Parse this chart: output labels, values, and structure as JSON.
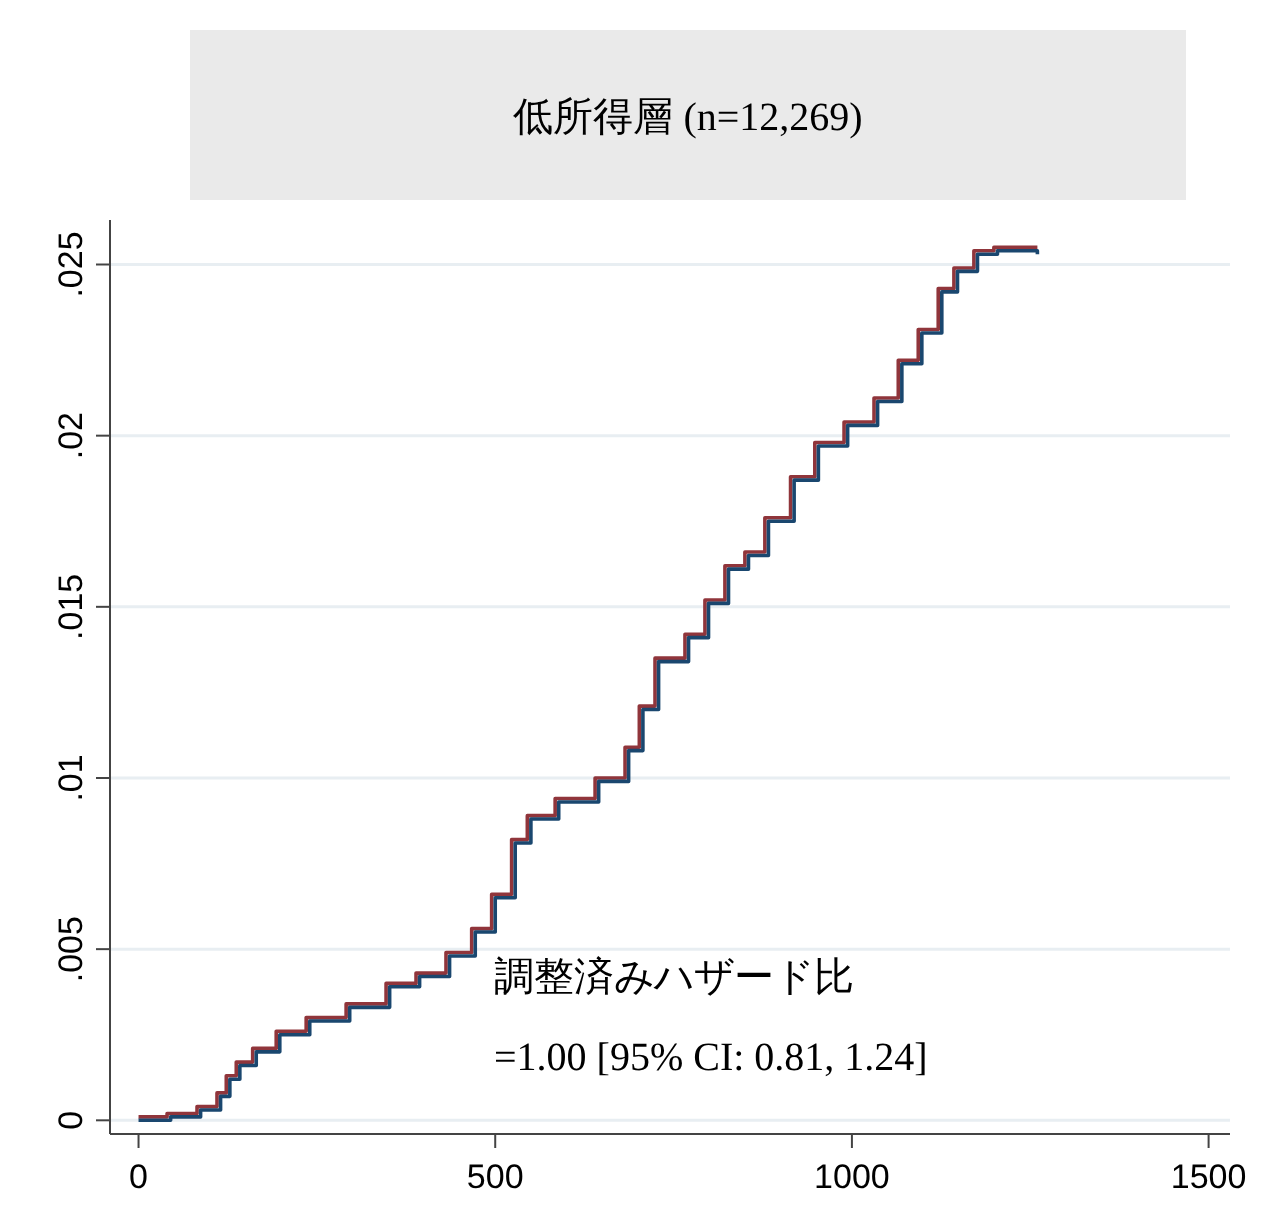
{
  "chart_data": {
    "type": "step",
    "title": "低所得層 (n=12,269)",
    "annotations": [
      "調整済みハザード比",
      "=1.00 [95% CI: 0.81, 1.24]"
    ],
    "xlim": [
      -40,
      1530
    ],
    "xticks": [
      0,
      500,
      1000,
      1500
    ],
    "ylim": [
      -0.0004,
      0.0263
    ],
    "yticks": [
      0,
      {
        "value": 0.005,
        "label": ".005"
      },
      {
        "value": 0.01,
        "label": ".01"
      },
      {
        "value": 0.015,
        "label": ".015"
      },
      {
        "value": 0.02,
        "label": ".02"
      },
      {
        "value": 0.025,
        "label": ".025"
      }
    ],
    "grid": "y",
    "series": [
      {
        "color": "#90353b",
        "x": [
          0,
          40,
          82,
          110,
          123,
          137,
          160,
          193,
          235,
          291,
          347,
          389,
          431,
          467,
          495,
          523,
          545,
          584,
          640,
          682,
          702,
          724,
          766,
          794,
          822,
          850,
          878,
          914,
          948,
          989,
          1031,
          1065,
          1093,
          1121,
          1143,
          1171,
          1199,
          1260
        ],
        "values": [
          0.0001,
          0.0002,
          0.0004,
          0.0008,
          0.0013,
          0.0017,
          0.0021,
          0.0026,
          0.003,
          0.0034,
          0.004,
          0.0043,
          0.0049,
          0.0056,
          0.0066,
          0.0082,
          0.0089,
          0.0094,
          0.01,
          0.0109,
          0.0121,
          0.0135,
          0.0142,
          0.0152,
          0.0162,
          0.0166,
          0.0176,
          0.0188,
          0.0198,
          0.0204,
          0.0211,
          0.0222,
          0.0231,
          0.0243,
          0.0249,
          0.0254,
          0.0255,
          0.0255
        ]
      },
      {
        "color": "#1a476f",
        "x": [
          0,
          45,
          87,
          115,
          128,
          142,
          165,
          198,
          240,
          296,
          352,
          394,
          436,
          472,
          500,
          528,
          550,
          589,
          645,
          687,
          707,
          729,
          771,
          799,
          827,
          855,
          883,
          919,
          953,
          994,
          1036,
          1070,
          1098,
          1126,
          1148,
          1176,
          1204,
          1260
        ],
        "values": [
          0,
          0.0001,
          0.0003,
          0.0007,
          0.0012,
          0.0016,
          0.002,
          0.0025,
          0.0029,
          0.0033,
          0.0039,
          0.0042,
          0.0048,
          0.0055,
          0.0065,
          0.0081,
          0.0088,
          0.0093,
          0.0099,
          0.0108,
          0.012,
          0.0134,
          0.0141,
          0.0151,
          0.0161,
          0.0165,
          0.0175,
          0.0187,
          0.0197,
          0.0203,
          0.021,
          0.0221,
          0.023,
          0.0242,
          0.0248,
          0.0253,
          0.0254,
          0.0253
        ]
      }
    ]
  }
}
